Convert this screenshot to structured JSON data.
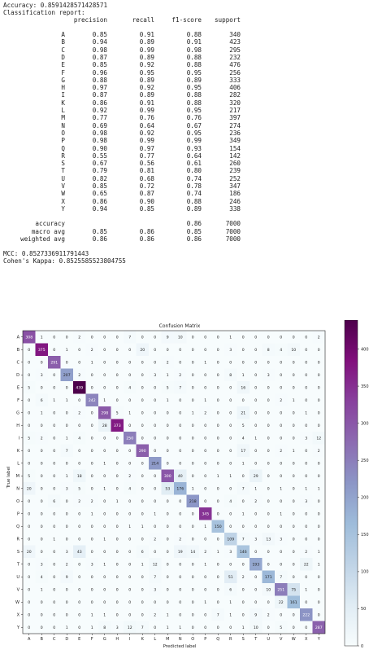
{
  "accuracy_line": "Accuracy: 0.8591428571428571",
  "report_title": "Classification report:",
  "report_headers": [
    "precision",
    "recall",
    "f1-score",
    "support"
  ],
  "report_rows": [
    [
      "A",
      "0.85",
      "0.91",
      "0.88",
      "340"
    ],
    [
      "B",
      "0.94",
      "0.89",
      "0.91",
      "423"
    ],
    [
      "C",
      "0.98",
      "0.99",
      "0.98",
      "295"
    ],
    [
      "D",
      "0.87",
      "0.89",
      "0.88",
      "232"
    ],
    [
      "E",
      "0.85",
      "0.92",
      "0.88",
      "476"
    ],
    [
      "F",
      "0.96",
      "0.95",
      "0.95",
      "256"
    ],
    [
      "G",
      "0.88",
      "0.89",
      "0.89",
      "333"
    ],
    [
      "H",
      "0.97",
      "0.92",
      "0.95",
      "406"
    ],
    [
      "I",
      "0.87",
      "0.89",
      "0.88",
      "282"
    ],
    [
      "K",
      "0.86",
      "0.91",
      "0.88",
      "320"
    ],
    [
      "L",
      "0.92",
      "0.99",
      "0.95",
      "217"
    ],
    [
      "M",
      "0.77",
      "0.76",
      "0.76",
      "397"
    ],
    [
      "N",
      "0.69",
      "0.64",
      "0.67",
      "274"
    ],
    [
      "O",
      "0.98",
      "0.92",
      "0.95",
      "236"
    ],
    [
      "P",
      "0.98",
      "0.99",
      "0.99",
      "349"
    ],
    [
      "Q",
      "0.90",
      "0.97",
      "0.93",
      "154"
    ],
    [
      "R",
      "0.55",
      "0.77",
      "0.64",
      "142"
    ],
    [
      "S",
      "0.67",
      "0.56",
      "0.61",
      "260"
    ],
    [
      "T",
      "0.79",
      "0.81",
      "0.80",
      "239"
    ],
    [
      "U",
      "0.82",
      "0.68",
      "0.74",
      "252"
    ],
    [
      "V",
      "0.85",
      "0.72",
      "0.78",
      "347"
    ],
    [
      "W",
      "0.65",
      "0.87",
      "0.74",
      "186"
    ],
    [
      "X",
      "0.86",
      "0.90",
      "0.88",
      "246"
    ],
    [
      "Y",
      "0.94",
      "0.85",
      "0.89",
      "338"
    ]
  ],
  "summary_rows": [
    [
      "accuracy",
      "",
      "",
      "0.86",
      "7000"
    ],
    [
      "macro avg",
      "0.85",
      "0.86",
      "0.85",
      "7000"
    ],
    [
      "weighted avg",
      "0.86",
      "0.86",
      "0.86",
      "7000"
    ]
  ],
  "mcc_line": "MCC: 0.8527336911791443",
  "kappa_line": "Cohen's Kappa: 0.8525585523804755",
  "chart_data": {
    "type": "heatmap",
    "title": "Confusion Matrix",
    "xlabel": "Predicted label",
    "ylabel": "True label",
    "labels": [
      "A",
      "B",
      "C",
      "D",
      "E",
      "F",
      "G",
      "H",
      "I",
      "K",
      "L",
      "M",
      "N",
      "O",
      "P",
      "Q",
      "R",
      "S",
      "T",
      "U",
      "V",
      "W",
      "X",
      "Y"
    ],
    "matrix": [
      [
        308,
        1,
        0,
        0,
        2,
        0,
        0,
        0,
        7,
        0,
        0,
        9,
        10,
        0,
        0,
        0,
        1,
        0,
        0,
        0,
        0,
        0,
        0,
        2
      ],
      [
        0,
        375,
        0,
        1,
        0,
        2,
        0,
        0,
        0,
        20,
        0,
        0,
        0,
        0,
        0,
        0,
        3,
        0,
        0,
        8,
        4,
        10,
        0,
        0
      ],
      [
        0,
        0,
        291,
        0,
        0,
        1,
        0,
        0,
        0,
        0,
        0,
        2,
        0,
        0,
        1,
        0,
        0,
        0,
        0,
        0,
        0,
        0,
        0,
        0
      ],
      [
        0,
        3,
        0,
        207,
        2,
        0,
        0,
        0,
        0,
        0,
        3,
        1,
        2,
        0,
        0,
        0,
        8,
        1,
        0,
        3,
        0,
        0,
        0,
        0
      ],
      [
        5,
        0,
        0,
        0,
        439,
        0,
        0,
        0,
        4,
        0,
        0,
        5,
        7,
        0,
        0,
        0,
        0,
        16,
        0,
        0,
        0,
        0,
        0,
        0
      ],
      [
        0,
        6,
        1,
        1,
        0,
        242,
        1,
        0,
        0,
        0,
        0,
        1,
        0,
        0,
        1,
        0,
        0,
        0,
        0,
        0,
        2,
        1,
        0,
        0
      ],
      [
        0,
        1,
        0,
        0,
        2,
        0,
        298,
        5,
        1,
        0,
        0,
        0,
        0,
        1,
        2,
        0,
        0,
        21,
        0,
        0,
        0,
        0,
        1,
        0
      ],
      [
        0,
        0,
        0,
        0,
        0,
        0,
        28,
        373,
        0,
        0,
        0,
        0,
        0,
        0,
        0,
        0,
        0,
        5,
        0,
        0,
        0,
        0,
        0,
        0
      ],
      [
        5,
        2,
        0,
        1,
        4,
        0,
        0,
        0,
        250,
        0,
        0,
        0,
        0,
        0,
        0,
        0,
        0,
        4,
        1,
        0,
        0,
        0,
        3,
        12
      ],
      [
        0,
        0,
        0,
        7,
        0,
        0,
        0,
        0,
        0,
        290,
        0,
        0,
        0,
        0,
        0,
        0,
        0,
        17,
        0,
        0,
        2,
        1,
        0,
        2
      ],
      [
        0,
        0,
        0,
        0,
        0,
        0,
        1,
        0,
        0,
        0,
        214,
        0,
        0,
        0,
        0,
        0,
        0,
        1,
        0,
        0,
        0,
        0,
        0,
        0
      ],
      [
        5,
        0,
        0,
        1,
        18,
        0,
        0,
        0,
        2,
        0,
        0,
        300,
        40,
        0,
        0,
        1,
        1,
        0,
        29,
        0,
        0,
        0,
        0,
        0
      ],
      [
        20,
        0,
        0,
        3,
        5,
        0,
        1,
        0,
        4,
        0,
        0,
        53,
        176,
        1,
        0,
        0,
        0,
        7,
        1,
        0,
        1,
        0,
        1,
        1
      ],
      [
        0,
        0,
        6,
        0,
        2,
        2,
        0,
        1,
        0,
        0,
        0,
        0,
        0,
        218,
        0,
        0,
        4,
        0,
        2,
        0,
        0,
        0,
        3,
        0
      ],
      [
        0,
        0,
        0,
        0,
        0,
        1,
        0,
        0,
        0,
        0,
        1,
        0,
        0,
        0,
        345,
        0,
        0,
        1,
        0,
        0,
        1,
        0,
        0,
        0
      ],
      [
        0,
        0,
        0,
        0,
        0,
        0,
        0,
        0,
        1,
        1,
        0,
        0,
        0,
        0,
        1,
        150,
        0,
        0,
        0,
        0,
        0,
        0,
        0,
        0
      ],
      [
        0,
        0,
        1,
        0,
        0,
        0,
        1,
        0,
        0,
        0,
        2,
        0,
        2,
        0,
        0,
        0,
        109,
        7,
        3,
        13,
        3,
        0,
        0,
        0
      ],
      [
        20,
        0,
        0,
        3,
        43,
        0,
        0,
        0,
        0,
        6,
        0,
        0,
        19,
        14,
        2,
        1,
        3,
        146,
        0,
        0,
        0,
        0,
        2,
        1
      ],
      [
        0,
        3,
        0,
        2,
        0,
        3,
        1,
        0,
        0,
        1,
        12,
        0,
        0,
        0,
        1,
        0,
        0,
        0,
        193,
        0,
        0,
        0,
        22,
        1
      ],
      [
        0,
        4,
        0,
        9,
        0,
        0,
        0,
        0,
        0,
        0,
        7,
        0,
        0,
        0,
        0,
        0,
        51,
        2,
        0,
        171,
        7,
        0,
        0,
        0
      ],
      [
        0,
        1,
        0,
        0,
        0,
        0,
        0,
        0,
        0,
        0,
        3,
        0,
        0,
        0,
        0,
        0,
        6,
        0,
        0,
        10,
        251,
        75,
        1,
        0
      ],
      [
        0,
        0,
        0,
        0,
        0,
        0,
        0,
        0,
        0,
        0,
        0,
        0,
        0,
        0,
        1,
        0,
        1,
        0,
        0,
        0,
        22,
        161,
        0,
        0
      ],
      [
        0,
        0,
        0,
        0,
        0,
        1,
        1,
        0,
        0,
        0,
        2,
        1,
        0,
        0,
        0,
        7,
        1,
        0,
        9,
        2,
        0,
        0,
        222,
        0
      ],
      [
        0,
        0,
        0,
        1,
        0,
        1,
        8,
        3,
        12,
        7,
        0,
        1,
        1,
        0,
        0,
        0,
        0,
        1,
        10,
        0,
        5,
        0,
        0,
        287
      ]
    ],
    "colorbar_ticks": [
      0,
      50,
      100,
      150,
      200,
      250,
      300,
      350,
      400
    ],
    "colorbar_range": [
      0,
      439
    ],
    "colormap": "BuPu"
  }
}
